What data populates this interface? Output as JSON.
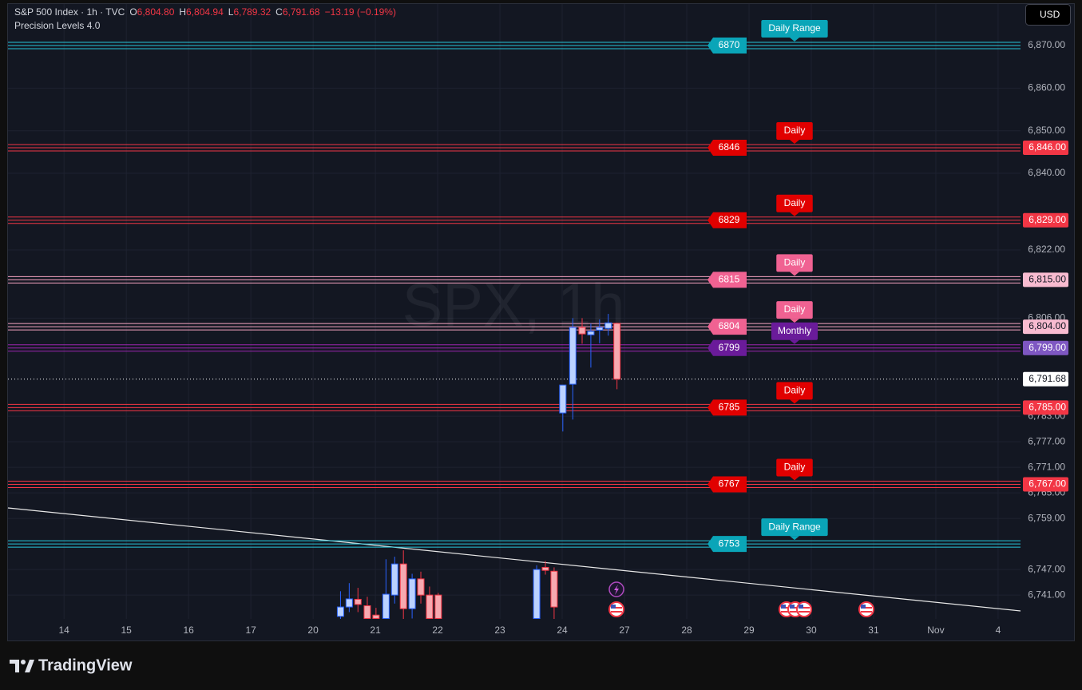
{
  "chart_data": {
    "type": "candlestick",
    "header": {
      "symbol": "S&P 500 Index · 1h · TVC",
      "ohlc": [
        {
          "key": "O",
          "value": "6,804.80"
        },
        {
          "key": "H",
          "value": "6,804.94"
        },
        {
          "key": "L",
          "value": "6,789.32"
        },
        {
          "key": "C",
          "value": "6,791.68"
        }
      ],
      "change": "−13.19 (−0.19%)",
      "indicator": "Precision Levels 4.0"
    },
    "watermark": "SPX, 1h",
    "currency": "USD",
    "brand": "TradingView",
    "xlim": [
      -0.9,
      15.36
    ],
    "xticks": [
      {
        "value": 0,
        "label": "14"
      },
      {
        "value": 1,
        "label": "15"
      },
      {
        "value": 2,
        "label": "16"
      },
      {
        "value": 3,
        "label": "17"
      },
      {
        "value": 4,
        "label": "20"
      },
      {
        "value": 5,
        "label": "21"
      },
      {
        "value": 6,
        "label": "22"
      },
      {
        "value": 7,
        "label": "23"
      },
      {
        "value": 8,
        "label": "24"
      },
      {
        "value": 9,
        "label": "27"
      },
      {
        "value": 10,
        "label": "28"
      },
      {
        "value": 11,
        "label": "29"
      },
      {
        "value": 12,
        "label": "30"
      },
      {
        "value": 13,
        "label": "31"
      },
      {
        "value": 14,
        "label": "Nov"
      },
      {
        "value": 15,
        "label": "4"
      }
    ],
    "ylim": [
      6735.4,
      6879.75
    ],
    "yticks": [
      {
        "value": 6741,
        "label": "6,741.00"
      },
      {
        "value": 6747,
        "label": "6,747.00"
      },
      {
        "value": 6759,
        "label": "6,759.00"
      },
      {
        "value": 6765,
        "label": "6,765.00"
      },
      {
        "value": 6771,
        "label": "6,771.00"
      },
      {
        "value": 6777,
        "label": "6,777.00"
      },
      {
        "value": 6783,
        "label": "6,783.00"
      },
      {
        "value": 6806,
        "label": "6,806.00"
      },
      {
        "value": 6822,
        "label": "6,822.00"
      },
      {
        "value": 6840,
        "label": "6,840.00"
      },
      {
        "value": 6850,
        "label": "6,850.00"
      },
      {
        "value": 6860,
        "label": "6,860.00"
      },
      {
        "value": 6870,
        "label": "6,870.00"
      }
    ],
    "grid": true,
    "up_color": "#2962ff",
    "down_color": "#f23645",
    "candles": {
      "x": [
        4.44,
        4.58,
        4.72,
        4.87,
        5.01,
        5.17,
        5.31,
        5.45,
        5.59,
        5.73,
        5.87,
        6.01,
        7.59,
        7.73,
        7.87,
        8.01,
        8.17,
        8.32,
        8.46,
        8.6,
        8.74,
        8.88
      ],
      "open": [
        6736,
        6738.2,
        6740,
        6738.5,
        6736.3,
        6735.5,
        6741,
        6748.3,
        6737.8,
        6744.8,
        6741,
        6741,
        6735.5,
        6747.5,
        6746.6,
        6783.75,
        6790.5,
        6803.8,
        6802.1,
        6803.2,
        6803.6,
        6804.8
      ],
      "high": [
        6741.9,
        6743.8,
        6742.7,
        6740.6,
        6738,
        6749.4,
        6750,
        6751.5,
        6746,
        6746.5,
        6743,
        6741.5,
        6748,
        6749,
        6747.5,
        6790.3,
        6806,
        6806,
        6804.75,
        6805.7,
        6807,
        6804.94
      ],
      "low": [
        6735,
        6737,
        6737,
        6735,
        6735,
        6735,
        6739,
        6735,
        6735.5,
        6739,
        6735,
        6735,
        6735,
        6745.8,
        6735,
        6779.4,
        6782.2,
        6800,
        6794.4,
        6800.1,
        6801.9,
        6789.32
      ],
      "close": [
        6738.2,
        6740.1,
        6738.8,
        6735.5,
        6735.5,
        6741.2,
        6748.3,
        6737.8,
        6744.8,
        6741,
        6735.5,
        6735.5,
        6747,
        6746.8,
        6738.2,
        6790.3,
        6803.8,
        6802.3,
        6802.9,
        6803.8,
        6804.9,
        6791.68
      ]
    },
    "levels": [
      {
        "value": 6870,
        "tag": "Daily Range",
        "color": "#26c6da",
        "box_color": "#0aa5b8"
      },
      {
        "value": 6846,
        "tag": "Daily",
        "color": "#f23645",
        "box_color": "#e10000",
        "axis_label": "6,846.00",
        "axis_color": "#f23645",
        "axis_text": "#ffffff"
      },
      {
        "value": 6829,
        "tag": "Daily",
        "color": "#f23645",
        "box_color": "#e10000",
        "axis_label": "6,829.00",
        "axis_color": "#f23645",
        "axis_text": "#ffffff"
      },
      {
        "value": 6815,
        "tag": "Daily",
        "color": "#f8a5c2",
        "box_color": "#f06292",
        "axis_label": "6,815.00",
        "axis_color": "#f8bbd0",
        "axis_text": "#131722"
      },
      {
        "value": 6804,
        "tag": "Daily",
        "color": "#f8a5c2",
        "box_color": "#f06292",
        "axis_label": "6,804.00",
        "axis_color": "#f8bbd0",
        "axis_text": "#131722"
      },
      {
        "value": 6799,
        "tag": "Monthly",
        "color": "#9c27b0",
        "box_color": "#6a1b9a",
        "axis_label": "6,799.00",
        "axis_color": "#7e57c2",
        "axis_text": "#ffffff"
      },
      {
        "value": 6785,
        "tag": "Daily",
        "color": "#f23645",
        "box_color": "#e10000",
        "axis_label": "6,785.00",
        "axis_color": "#f23645",
        "axis_text": "#ffffff"
      },
      {
        "value": 6767,
        "tag": "Daily",
        "color": "#f23645",
        "box_color": "#e10000",
        "axis_label": "6,767.00",
        "axis_color": "#f23645",
        "axis_text": "#ffffff"
      },
      {
        "value": 6753,
        "tag": "Daily Range",
        "color": "#26c6da",
        "box_color": "#0aa5b8"
      }
    ],
    "last_price": {
      "value": 6791.68,
      "label": "6,791.68"
    }
  }
}
